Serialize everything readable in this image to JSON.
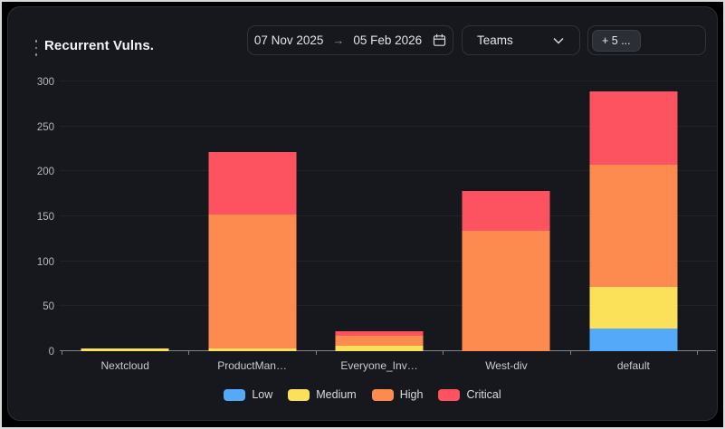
{
  "card": {
    "title": "Recurrent Vulns."
  },
  "filters": {
    "date_range": {
      "start": "07 Nov 2025",
      "separator": "→",
      "end": "05 Feb 2026"
    },
    "teams_select": {
      "value": "Teams"
    },
    "more_chip": {
      "label": "+ 5 ..."
    }
  },
  "colors": {
    "low": "#54a9f8",
    "medium": "#fbe15a",
    "high": "#fd8a4f",
    "critical": "#fd5360",
    "card_background": "#16181d",
    "page_background": "#000000"
  },
  "chart_data": {
    "type": "bar",
    "stacked": true,
    "title": "Recurrent Vulns.",
    "categories": [
      "Nextcloud",
      "ProductMan…",
      "Everyone_Inv…",
      "West-div",
      "default"
    ],
    "series": [
      {
        "name": "Low",
        "color": "#54a9f8",
        "values": [
          0,
          0,
          0,
          0,
          25
        ]
      },
      {
        "name": "Medium",
        "color": "#fbe15a",
        "values": [
          3,
          3,
          6,
          0,
          47
        ]
      },
      {
        "name": "High",
        "color": "#fd8a4f",
        "values": [
          0,
          149,
          11,
          134,
          135
        ]
      },
      {
        "name": "Critical",
        "color": "#fd5360",
        "values": [
          0,
          70,
          5,
          44,
          82
        ]
      }
    ],
    "totals": [
      3,
      222,
      22,
      178,
      289
    ],
    "ylim": [
      0,
      300
    ],
    "yticks": [
      0,
      50,
      100,
      150,
      200,
      250,
      300
    ],
    "grid": true,
    "legend_position": "bottom"
  }
}
